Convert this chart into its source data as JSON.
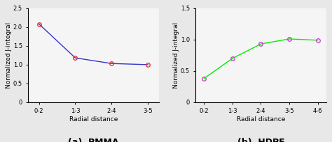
{
  "pmma": {
    "x": [
      0,
      1,
      2,
      3
    ],
    "y": [
      2.08,
      1.18,
      1.03,
      1.0
    ],
    "x_labels": [
      "0-2",
      "1-3",
      "2-4",
      "3-5"
    ],
    "xlim": [
      -0.3,
      3.3
    ],
    "ylim": [
      0,
      2.5
    ],
    "yticks": [
      0,
      0.5,
      1.0,
      1.5,
      2.0,
      2.5
    ],
    "line_color": "#3333cc",
    "marker_color": "#ee3333",
    "xlabel": "Radial distance",
    "ylabel": "Normalized J-integral",
    "subtitle": "(a)  PMMA"
  },
  "hdpe": {
    "x": [
      0,
      1,
      2,
      3,
      4
    ],
    "y": [
      0.38,
      0.7,
      0.93,
      1.01,
      0.99
    ],
    "x_labels": [
      "0-2",
      "1-3",
      "2-4",
      "3-5",
      "4-6"
    ],
    "xlim": [
      -0.3,
      4.3
    ],
    "ylim": [
      0,
      1.5
    ],
    "yticks": [
      0,
      0.5,
      1.0,
      1.5
    ],
    "line_color": "#00ee00",
    "marker_color": "#cc44cc",
    "xlabel": "Radial distance",
    "ylabel": "Normalized J-integral",
    "subtitle": "(b)  HDPE"
  },
  "bg_color": "#e8e8e8",
  "plot_bg": "#f5f5f5",
  "subtitle_fontsize": 9,
  "label_fontsize": 6.5,
  "tick_fontsize": 6
}
